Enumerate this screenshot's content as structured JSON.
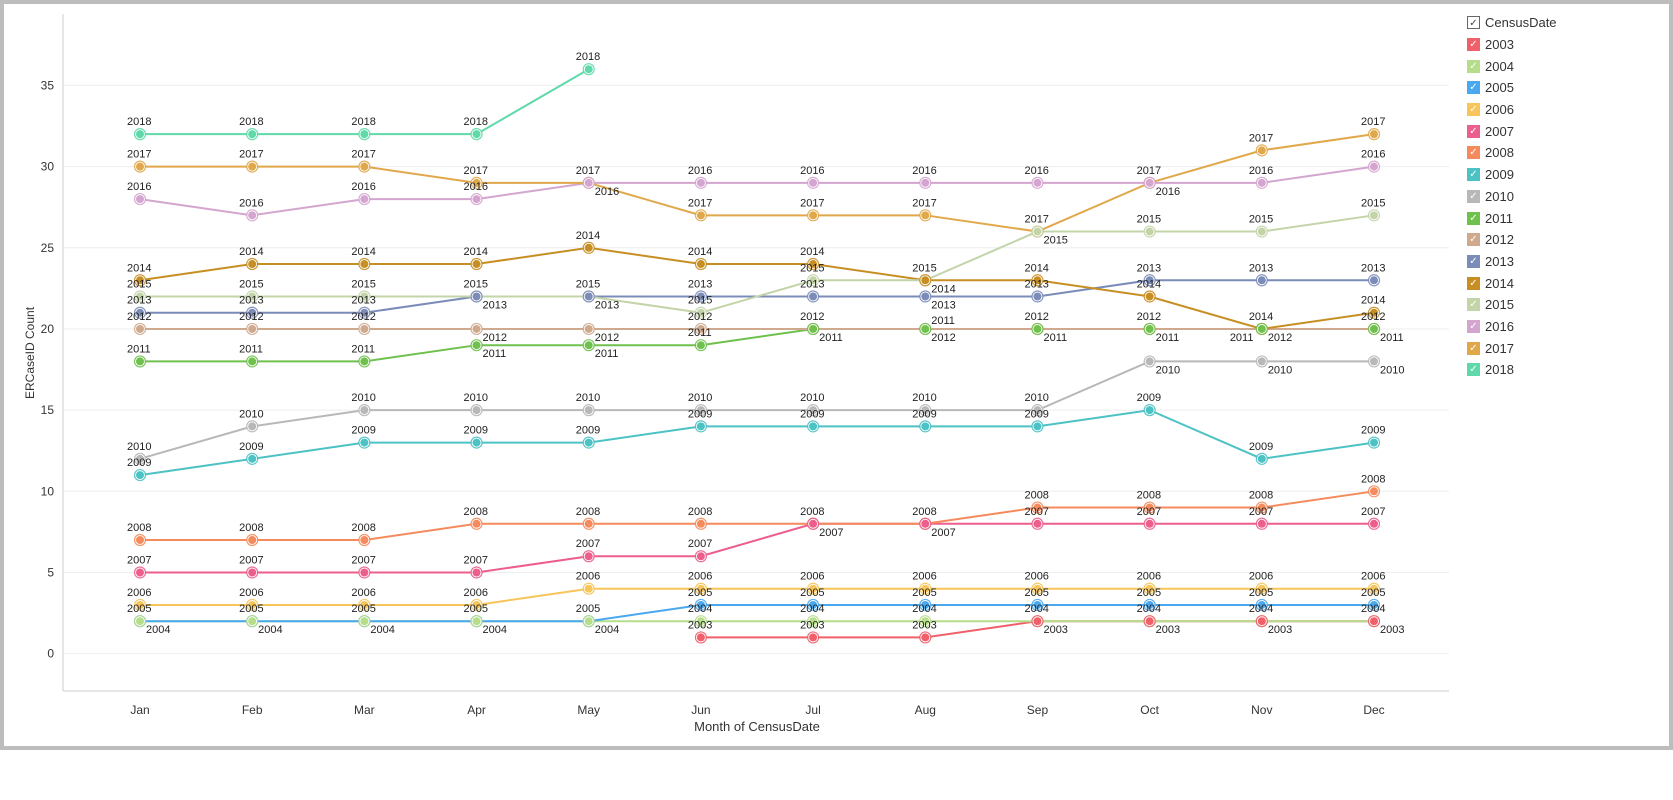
{
  "chart_data": {
    "type": "line",
    "xlabel": "Month of CensusDate",
    "ylabel": "ERCaseID Count",
    "categories": [
      "Jan",
      "Feb",
      "Mar",
      "Apr",
      "May",
      "Jun",
      "Jul",
      "Aug",
      "Sep",
      "Oct",
      "Nov",
      "Dec"
    ],
    "ylim": [
      -2.3,
      39.4
    ],
    "yticks": [
      0,
      5,
      10,
      15,
      20,
      25,
      30,
      35
    ],
    "grid": true,
    "legend_title": "CensusDate",
    "legend_placement": "right",
    "data_labels": "series name",
    "series": [
      {
        "name": "2003",
        "color": "#f0606a",
        "values": [
          null,
          null,
          null,
          null,
          null,
          1,
          1,
          1,
          2,
          2,
          2,
          2
        ]
      },
      {
        "name": "2004",
        "color": "#b5dd8a",
        "values": [
          2,
          2,
          2,
          2,
          2,
          2,
          2,
          2,
          2,
          2,
          2,
          2
        ]
      },
      {
        "name": "2005",
        "color": "#4aa8ef",
        "values": [
          2,
          2,
          2,
          2,
          2,
          3,
          3,
          3,
          3,
          3,
          3,
          3
        ]
      },
      {
        "name": "2006",
        "color": "#f7c55a",
        "values": [
          3,
          3,
          3,
          3,
          4,
          4,
          4,
          4,
          4,
          4,
          4,
          4
        ]
      },
      {
        "name": "2007",
        "color": "#ec5f8c",
        "values": [
          5,
          5,
          5,
          5,
          6,
          6,
          8,
          8,
          8,
          8,
          8,
          8
        ]
      },
      {
        "name": "2008",
        "color": "#f58a5c",
        "values": [
          7,
          7,
          7,
          8,
          8,
          8,
          8,
          8,
          9,
          9,
          9,
          10
        ]
      },
      {
        "name": "2009",
        "color": "#4cc2c4",
        "values": [
          11,
          12,
          13,
          13,
          13,
          14,
          14,
          14,
          14,
          15,
          12,
          13
        ]
      },
      {
        "name": "2010",
        "color": "#b8b8b8",
        "values": [
          12,
          14,
          15,
          15,
          15,
          15,
          15,
          15,
          15,
          18,
          18,
          18
        ]
      },
      {
        "name": "2011",
        "color": "#6fc04d",
        "values": [
          18,
          18,
          18,
          19,
          19,
          19,
          20,
          20,
          20,
          20,
          20,
          20
        ]
      },
      {
        "name": "2012",
        "color": "#cfa98e",
        "values": [
          20,
          20,
          20,
          20,
          20,
          20,
          20,
          20,
          20,
          20,
          20,
          20
        ]
      },
      {
        "name": "2013",
        "color": "#7b8cb8",
        "values": [
          21,
          21,
          21,
          22,
          22,
          22,
          22,
          22,
          22,
          23,
          23,
          23
        ]
      },
      {
        "name": "2014",
        "color": "#c78f23",
        "values": [
          23,
          24,
          24,
          24,
          25,
          24,
          24,
          23,
          23,
          22,
          20,
          21
        ]
      },
      {
        "name": "2015",
        "color": "#c3d4a9",
        "values": [
          22,
          22,
          22,
          22,
          22,
          21,
          23,
          23,
          26,
          26,
          26,
          27
        ]
      },
      {
        "name": "2016",
        "color": "#d4a5cf",
        "values": [
          28,
          27,
          28,
          28,
          29,
          29,
          29,
          29,
          29,
          29,
          29,
          30
        ]
      },
      {
        "name": "2017",
        "color": "#e0a84a",
        "values": [
          30,
          30,
          30,
          29,
          29,
          27,
          27,
          27,
          26,
          29,
          31,
          32
        ]
      },
      {
        "name": "2018",
        "color": "#5fd9a9",
        "values": [
          32,
          32,
          32,
          32,
          36,
          null,
          null,
          null,
          null,
          null,
          null,
          null
        ]
      }
    ]
  }
}
